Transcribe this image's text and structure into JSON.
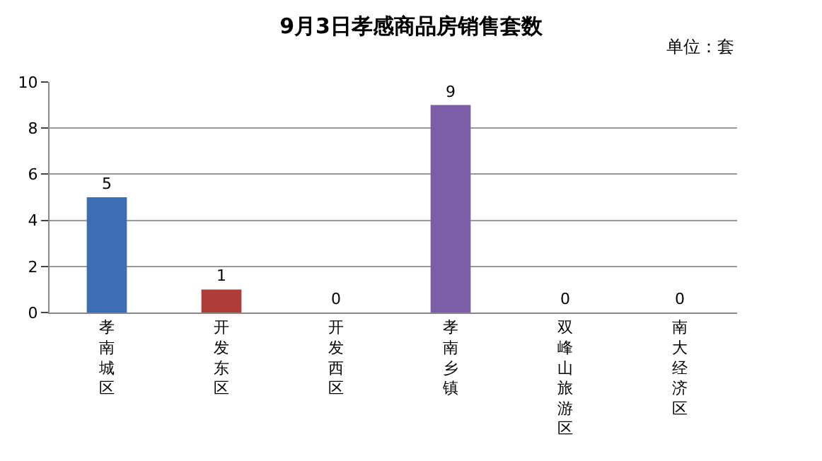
{
  "chart_data": {
    "type": "bar",
    "title": "9月3日孝感商品房销售套数",
    "subtitle": "单位：套",
    "categories": [
      "孝南城区",
      "开发东区",
      "开发西区",
      "孝南乡镇",
      "双峰山旅游区",
      "南大经济区"
    ],
    "values": [
      5,
      1,
      0,
      9,
      0,
      0
    ],
    "colors": [
      "#3e6db5",
      "#b03c3a",
      "#7f9c3f",
      "#7c5ea6",
      "#3596b0",
      "#e07f2e"
    ],
    "ylim": [
      0,
      10
    ],
    "yticks": [
      0,
      2,
      4,
      6,
      8,
      10
    ],
    "grid": "y",
    "legend": false,
    "data_labels": true
  }
}
